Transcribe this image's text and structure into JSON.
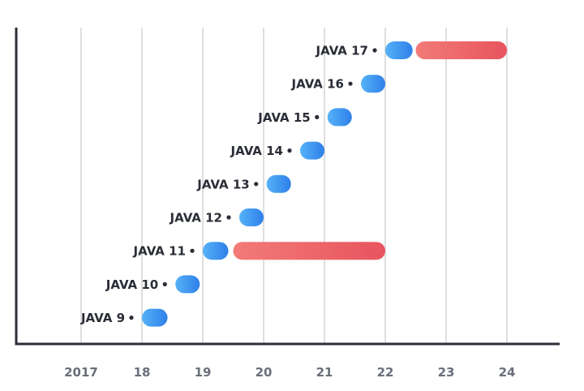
{
  "chart_data": {
    "type": "bar",
    "title": "",
    "xlabel": "",
    "ylabel": "",
    "x_ticks": [
      "2017",
      "18",
      "19",
      "20",
      "21",
      "22",
      "23",
      "24"
    ],
    "x_tick_values": [
      2017,
      2018,
      2019,
      2020,
      2021,
      2022,
      2023,
      2024
    ],
    "xlim": [
      2016,
      2024.9
    ],
    "grid": "vertical",
    "categories": [
      "JAVA 17",
      "JAVA 16",
      "JAVA 15",
      "JAVA 14",
      "JAVA 13",
      "JAVA 12",
      "JAVA 11",
      "JAVA 10",
      "JAVA 9"
    ],
    "series": [
      {
        "color": "#3b8ff0",
        "ranges": [
          [
            2022.0,
            2022.45
          ],
          [
            2021.6,
            2022.0
          ],
          [
            2021.05,
            2021.45
          ],
          [
            2020.6,
            2021.0
          ],
          [
            2020.05,
            2020.45
          ],
          [
            2019.6,
            2020.0
          ],
          [
            2019.0,
            2019.42
          ],
          [
            2018.55,
            2018.95
          ],
          [
            2018.0,
            2018.42
          ]
        ]
      },
      {
        "color": "#ee6468",
        "ranges": [
          [
            2022.5,
            2024.0
          ],
          null,
          null,
          null,
          null,
          null,
          [
            2019.5,
            2022.0
          ],
          null,
          null
        ]
      }
    ]
  }
}
